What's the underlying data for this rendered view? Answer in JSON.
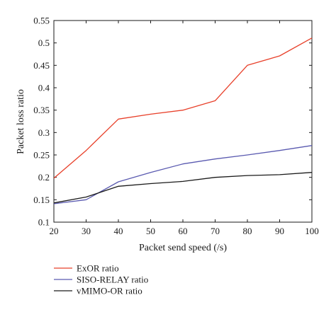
{
  "chart_data": {
    "type": "line",
    "xlabel": "Packet send speed (/s)",
    "ylabel": "Packet loss ratio",
    "xlim": [
      20,
      100
    ],
    "ylim": [
      0.1,
      0.55
    ],
    "x_ticks": [
      20,
      30,
      40,
      50,
      60,
      70,
      80,
      90,
      100
    ],
    "y_ticks": [
      "0.1",
      "0.15",
      "0.2",
      "0.25",
      "0.3",
      "0.35",
      "0.4",
      "0.45",
      "0.5",
      "0.55"
    ],
    "grid": false,
    "legend_position": "below",
    "x": [
      20,
      30,
      40,
      50,
      60,
      70,
      80,
      90,
      100
    ],
    "series": [
      {
        "name": "ExOR ratio",
        "color": "#e8402a",
        "values": [
          0.198,
          0.26,
          0.33,
          0.341,
          0.35,
          0.371,
          0.45,
          0.471,
          0.511
        ]
      },
      {
        "name": "SISO-RELAY ratio",
        "color": "#5a5ab0",
        "values": [
          0.141,
          0.15,
          0.19,
          0.211,
          0.23,
          0.241,
          0.25,
          0.26,
          0.271
        ]
      },
      {
        "name": "vMIMO-OR ratio",
        "color": "#1a1a1a",
        "values": [
          0.143,
          0.156,
          0.18,
          0.186,
          0.191,
          0.2,
          0.204,
          0.206,
          0.211
        ]
      }
    ]
  }
}
